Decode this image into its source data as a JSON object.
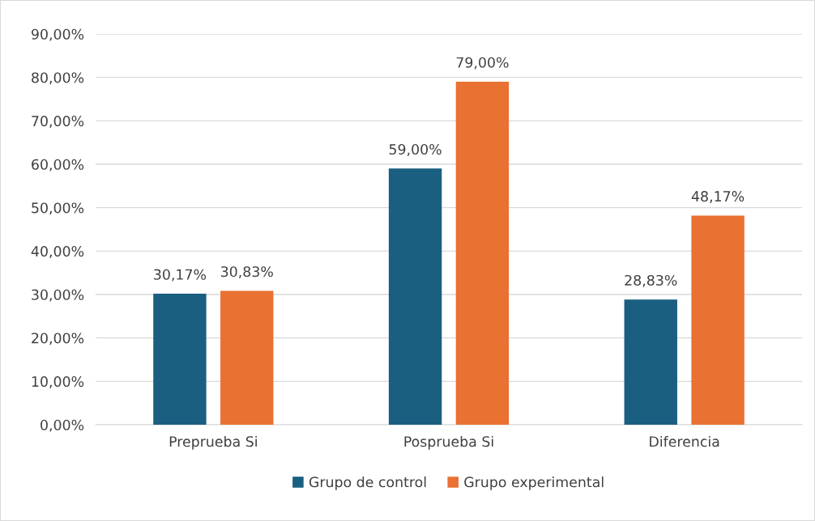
{
  "chart_data": {
    "type": "bar",
    "categories": [
      "Preprueba Si",
      "Posprueba Si",
      "Diferencia"
    ],
    "series": [
      {
        "name": "Grupo de control",
        "color": "#1a5f80",
        "values": [
          30.17,
          59.0,
          28.83
        ],
        "value_labels": [
          "30,17%",
          "59,00%",
          "28,83%"
        ]
      },
      {
        "name": "Grupo experimental",
        "color": "#e97132",
        "values": [
          30.83,
          79.0,
          48.17
        ],
        "value_labels": [
          "30,83%",
          "79,00%",
          "48,17%"
        ]
      }
    ],
    "ylim": [
      0,
      90
    ],
    "yticks": [
      {
        "value": 0,
        "label": "0,00%"
      },
      {
        "value": 10,
        "label": "10,00%"
      },
      {
        "value": 20,
        "label": "20,00%"
      },
      {
        "value": 30,
        "label": "30,00%"
      },
      {
        "value": 40,
        "label": "40,00%"
      },
      {
        "value": 50,
        "label": "50,00%"
      },
      {
        "value": 60,
        "label": "60,00%"
      },
      {
        "value": 70,
        "label": "70,00%"
      },
      {
        "value": 80,
        "label": "80,00%"
      },
      {
        "value": 90,
        "label": "90,00%"
      }
    ],
    "grid": "y",
    "legend": "bottom"
  }
}
